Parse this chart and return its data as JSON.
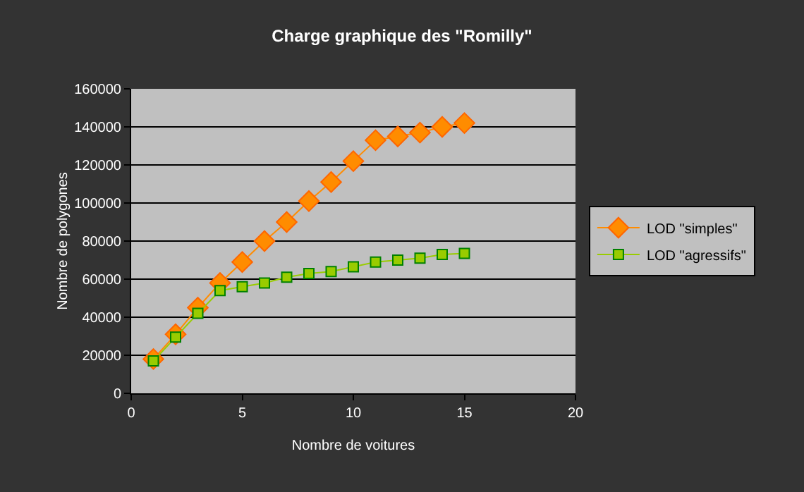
{
  "chart_data": {
    "type": "line",
    "title": "Charge graphique des \"Romilly\"",
    "xlabel": "Nombre de voitures",
    "ylabel": "Nombre de polygones",
    "x": [
      1,
      2,
      3,
      4,
      5,
      6,
      7,
      8,
      9,
      10,
      11,
      12,
      13,
      14,
      15
    ],
    "series": [
      {
        "name": "LOD \"simples\"",
        "color": "#ff8c00",
        "marker": "diamond",
        "values": [
          18000,
          31000,
          45000,
          58000,
          69000,
          80000,
          90000,
          101000,
          111000,
          122000,
          133000,
          135000,
          137000,
          140000,
          142000
        ]
      },
      {
        "name": "LOD \"agressifs\"",
        "color": "#99cc00",
        "marker": "square",
        "values": [
          17000,
          29500,
          42000,
          54000,
          56000,
          58000,
          61000,
          63000,
          64000,
          66500,
          69000,
          70000,
          71000,
          73000,
          73500
        ]
      }
    ],
    "xlim": [
      0,
      20
    ],
    "xticks": [
      0,
      5,
      10,
      15,
      20
    ],
    "ylim": [
      0,
      160000
    ],
    "yticks": [
      0,
      20000,
      40000,
      60000,
      80000,
      100000,
      120000,
      140000,
      160000
    ],
    "grid": "y",
    "legend": "right",
    "line_style": "solid"
  }
}
